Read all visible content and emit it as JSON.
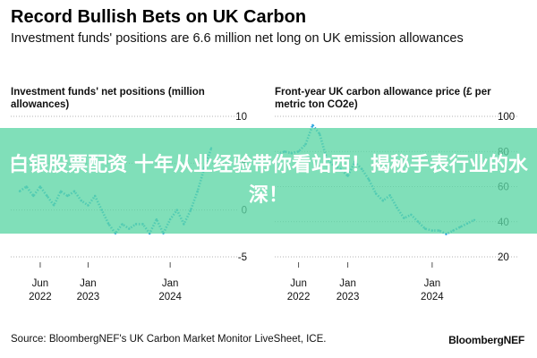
{
  "header": {
    "title": "Record Bullish Bets on UK Carbon",
    "subtitle": "Investment funds' positions are 6.6 million net long on UK emission allowances"
  },
  "overlay": {
    "banner_text": "白银股票配资 十年从业经验带你看站西！揭秘手表行业的水深！"
  },
  "footer": {
    "source": "Source: BloombergNEF's UK Carbon Market Monitor LiveSheet, ICE.",
    "brand": "BloombergNEF"
  },
  "chart_data": [
    {
      "type": "line",
      "title": "Investment funds' net positions (million allowances)",
      "series_color": "#2fa6e0",
      "line_style": "dotted",
      "ylim": [
        -5,
        10
      ],
      "y_ticks": [
        "10",
        "5",
        "0",
        "-5"
      ],
      "x_ticks": [
        {
          "label": "Jun\n2022",
          "date": "2022-06"
        },
        {
          "label": "Jan\n2023",
          "date": "2023-01"
        },
        {
          "label": "Jan\n2024",
          "date": "2024-01"
        }
      ],
      "x": [
        "2022-03",
        "2022-04",
        "2022-05",
        "2022-06",
        "2022-07",
        "2022-08",
        "2022-09",
        "2022-10",
        "2022-11",
        "2022-12",
        "2023-01",
        "2023-02",
        "2023-03",
        "2023-04",
        "2023-05",
        "2023-06",
        "2023-07",
        "2023-08",
        "2023-09",
        "2023-10",
        "2023-11",
        "2023-12",
        "2024-01",
        "2024-02",
        "2024-03",
        "2024-04",
        "2024-05",
        "2024-06",
        "2024-07"
      ],
      "values": [
        2.0,
        2.5,
        1.5,
        2.5,
        1.5,
        0.5,
        2.0,
        1.5,
        2.0,
        1.0,
        0.5,
        1.5,
        0.0,
        -1.5,
        -2.5,
        -1.5,
        -2.0,
        -1.5,
        -1.5,
        -2.5,
        -1.0,
        -2.5,
        -1.0,
        0.0,
        -1.5,
        0.0,
        2.0,
        4.5,
        6.6
      ]
    },
    {
      "type": "line",
      "title": "Front-year UK carbon allowance price (£ per metric ton CO2e)",
      "series_color": "#2fa6e0",
      "line_style": "dotted",
      "ylim": [
        20,
        100
      ],
      "y_ticks": [
        "100",
        "80",
        "60",
        "40",
        "20"
      ],
      "x_ticks": [
        {
          "label": "Jun\n2022",
          "date": "2022-06"
        },
        {
          "label": "Jan\n2023",
          "date": "2023-01"
        },
        {
          "label": "Jan\n2024",
          "date": "2024-01"
        }
      ],
      "x": [
        "2022-03",
        "2022-04",
        "2022-05",
        "2022-06",
        "2022-07",
        "2022-08",
        "2022-09",
        "2022-10",
        "2022-11",
        "2022-12",
        "2023-01",
        "2023-02",
        "2023-03",
        "2023-04",
        "2023-05",
        "2023-06",
        "2023-07",
        "2023-08",
        "2023-09",
        "2023-10",
        "2023-11",
        "2023-12",
        "2024-01",
        "2024-02",
        "2024-03",
        "2024-04",
        "2024-05",
        "2024-06",
        "2024-07"
      ],
      "values": [
        78,
        80,
        79,
        80,
        84,
        95,
        90,
        76,
        72,
        70,
        66,
        74,
        70,
        64,
        56,
        52,
        55,
        48,
        42,
        44,
        40,
        36,
        35,
        35,
        33,
        35,
        37,
        39,
        41
      ]
    }
  ]
}
